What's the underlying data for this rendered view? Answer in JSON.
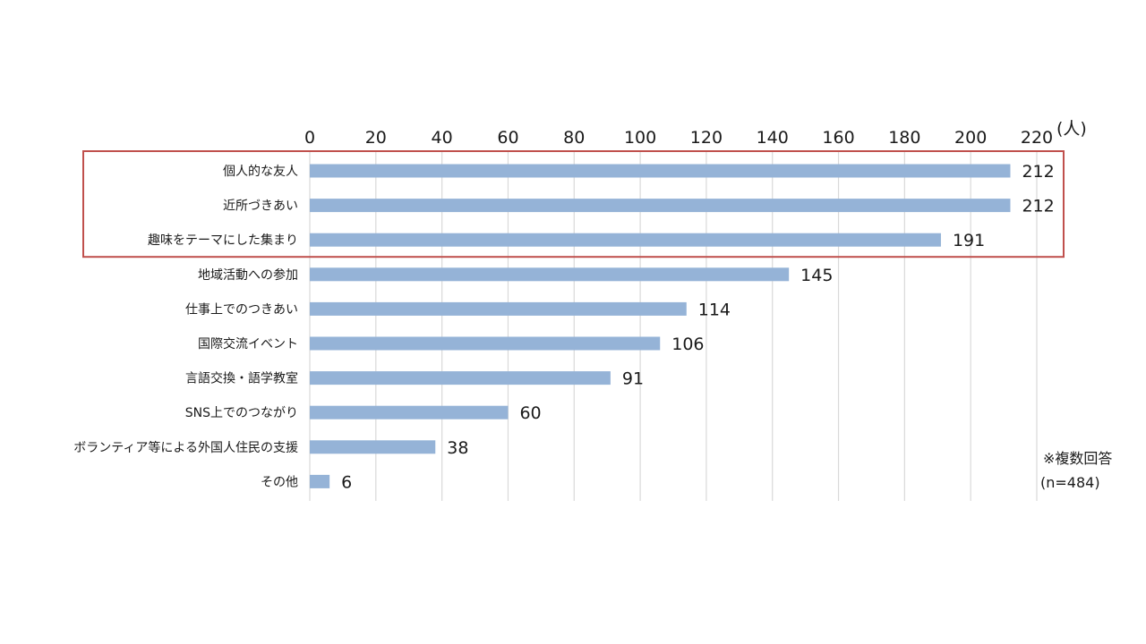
{
  "chart_data": {
    "type": "bar",
    "orientation": "horizontal",
    "categories": [
      "個人的な友人",
      "近所づきあい",
      "趣味をテーマにした集まり",
      "地域活動への参加",
      "仕事上でのつきあい",
      "国際交流イベント",
      "言語交換・語学教室",
      "SNS上でのつながり",
      "ボランティア等による外国人住民の支援",
      "その他"
    ],
    "values": [
      212,
      212,
      191,
      145,
      114,
      106,
      91,
      60,
      38,
      6
    ],
    "xlim": [
      0,
      220
    ],
    "x_ticks": [
      0,
      20,
      40,
      60,
      80,
      100,
      120,
      140,
      160,
      180,
      200,
      220
    ],
    "unit": "(人)",
    "grid": true,
    "bar_color": "#95b3d7",
    "highlight_color": "#c0504d",
    "highlighted_categories": [
      "個人的な友人",
      "近所づきあい",
      "趣味をテーマにした集まり"
    ],
    "note": [
      "※複数回答",
      "(n=484)"
    ]
  }
}
